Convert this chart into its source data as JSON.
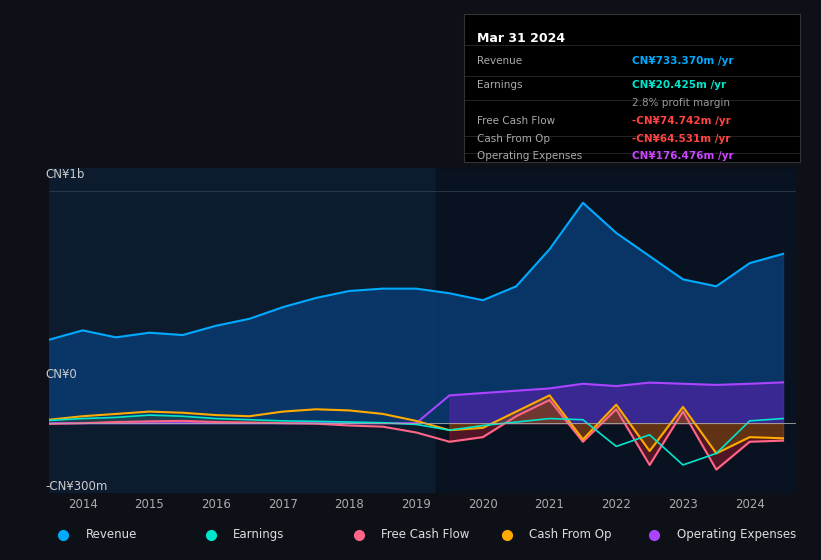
{
  "bg_color": "#0d1117",
  "chart_bg": "#0d1b2e",
  "title": "Mar 31 2024",
  "tooltip": {
    "Revenue": {
      "value": "CN¥733.370m /yr",
      "color": "#00aaff"
    },
    "Earnings": {
      "value": "CN¥20.425m /yr",
      "color": "#00e5cc"
    },
    "profit_margin": "2.8% profit margin",
    "Free Cash Flow": {
      "value": "-CN¥74.742m /yr",
      "color": "#ff4444"
    },
    "Cash From Op": {
      "value": "-CN¥64.531m /yr",
      "color": "#ff4444"
    },
    "Operating Expenses": {
      "value": "CN¥176.476m /yr",
      "color": "#cc44ff"
    }
  },
  "ylabel_top": "CN¥1b",
  "ylabel_mid": "CN¥0",
  "ylabel_bot": "-CN¥300m",
  "ylim": [
    -300,
    1100
  ],
  "xlim": [
    2013.5,
    2024.7
  ],
  "xticks": [
    2014,
    2015,
    2016,
    2017,
    2018,
    2019,
    2020,
    2021,
    2022,
    2023,
    2024
  ],
  "legend": [
    {
      "label": "Revenue",
      "color": "#00aaff"
    },
    {
      "label": "Earnings",
      "color": "#00e5cc"
    },
    {
      "label": "Free Cash Flow",
      "color": "#ff6688"
    },
    {
      "label": "Cash From Op",
      "color": "#ffaa00"
    },
    {
      "label": "Operating Expenses",
      "color": "#aa44ff"
    }
  ],
  "shaded_region_start": 2019.3,
  "revenue": [
    [
      2013.0,
      320
    ],
    [
      2013.5,
      360
    ],
    [
      2014.0,
      400
    ],
    [
      2014.5,
      370
    ],
    [
      2015.0,
      390
    ],
    [
      2015.5,
      380
    ],
    [
      2016.0,
      420
    ],
    [
      2016.5,
      450
    ],
    [
      2017.0,
      500
    ],
    [
      2017.5,
      540
    ],
    [
      2018.0,
      570
    ],
    [
      2018.5,
      580
    ],
    [
      2019.0,
      580
    ],
    [
      2019.5,
      560
    ],
    [
      2020.0,
      530
    ],
    [
      2020.5,
      590
    ],
    [
      2021.0,
      750
    ],
    [
      2021.5,
      950
    ],
    [
      2022.0,
      820
    ],
    [
      2022.5,
      720
    ],
    [
      2023.0,
      620
    ],
    [
      2023.5,
      590
    ],
    [
      2024.0,
      690
    ],
    [
      2024.5,
      730
    ]
  ],
  "earnings": [
    [
      2013.0,
      10
    ],
    [
      2013.5,
      12
    ],
    [
      2014.0,
      20
    ],
    [
      2014.5,
      25
    ],
    [
      2015.0,
      35
    ],
    [
      2015.5,
      30
    ],
    [
      2016.0,
      20
    ],
    [
      2016.5,
      15
    ],
    [
      2017.0,
      10
    ],
    [
      2017.5,
      8
    ],
    [
      2018.0,
      5
    ],
    [
      2018.5,
      2
    ],
    [
      2019.0,
      -5
    ],
    [
      2019.5,
      -30
    ],
    [
      2020.0,
      -10
    ],
    [
      2020.5,
      5
    ],
    [
      2021.0,
      20
    ],
    [
      2021.5,
      15
    ],
    [
      2022.0,
      -100
    ],
    [
      2022.5,
      -50
    ],
    [
      2023.0,
      -180
    ],
    [
      2023.5,
      -130
    ],
    [
      2024.0,
      10
    ],
    [
      2024.5,
      20
    ]
  ],
  "free_cash_flow": [
    [
      2013.0,
      -5
    ],
    [
      2013.5,
      -3
    ],
    [
      2014.0,
      0
    ],
    [
      2014.5,
      5
    ],
    [
      2015.0,
      8
    ],
    [
      2015.5,
      10
    ],
    [
      2016.0,
      5
    ],
    [
      2016.5,
      3
    ],
    [
      2017.0,
      0
    ],
    [
      2017.5,
      -2
    ],
    [
      2018.0,
      -10
    ],
    [
      2018.5,
      -15
    ],
    [
      2019.0,
      -40
    ],
    [
      2019.5,
      -80
    ],
    [
      2020.0,
      -60
    ],
    [
      2020.5,
      30
    ],
    [
      2021.0,
      100
    ],
    [
      2021.5,
      -80
    ],
    [
      2022.0,
      60
    ],
    [
      2022.5,
      -180
    ],
    [
      2023.0,
      50
    ],
    [
      2023.5,
      -200
    ],
    [
      2024.0,
      -80
    ],
    [
      2024.5,
      -75
    ]
  ],
  "cash_from_op": [
    [
      2013.0,
      10
    ],
    [
      2013.5,
      15
    ],
    [
      2014.0,
      30
    ],
    [
      2014.5,
      40
    ],
    [
      2015.0,
      50
    ],
    [
      2015.5,
      45
    ],
    [
      2016.0,
      35
    ],
    [
      2016.5,
      30
    ],
    [
      2017.0,
      50
    ],
    [
      2017.5,
      60
    ],
    [
      2018.0,
      55
    ],
    [
      2018.5,
      40
    ],
    [
      2019.0,
      10
    ],
    [
      2019.5,
      -30
    ],
    [
      2020.0,
      -20
    ],
    [
      2020.5,
      50
    ],
    [
      2021.0,
      120
    ],
    [
      2021.5,
      -70
    ],
    [
      2022.0,
      80
    ],
    [
      2022.5,
      -120
    ],
    [
      2023.0,
      70
    ],
    [
      2023.5,
      -130
    ],
    [
      2024.0,
      -60
    ],
    [
      2024.5,
      -65
    ]
  ],
  "operating_expenses": [
    [
      2013.0,
      0
    ],
    [
      2013.5,
      0
    ],
    [
      2014.0,
      0
    ],
    [
      2014.5,
      0
    ],
    [
      2015.0,
      0
    ],
    [
      2015.5,
      0
    ],
    [
      2016.0,
      0
    ],
    [
      2016.5,
      0
    ],
    [
      2017.0,
      0
    ],
    [
      2017.5,
      0
    ],
    [
      2018.0,
      0
    ],
    [
      2018.5,
      0
    ],
    [
      2019.0,
      0
    ],
    [
      2019.5,
      120
    ],
    [
      2020.0,
      130
    ],
    [
      2020.5,
      140
    ],
    [
      2021.0,
      150
    ],
    [
      2021.5,
      170
    ],
    [
      2022.0,
      160
    ],
    [
      2022.5,
      175
    ],
    [
      2023.0,
      170
    ],
    [
      2023.5,
      165
    ],
    [
      2024.0,
      170
    ],
    [
      2024.5,
      176
    ]
  ]
}
